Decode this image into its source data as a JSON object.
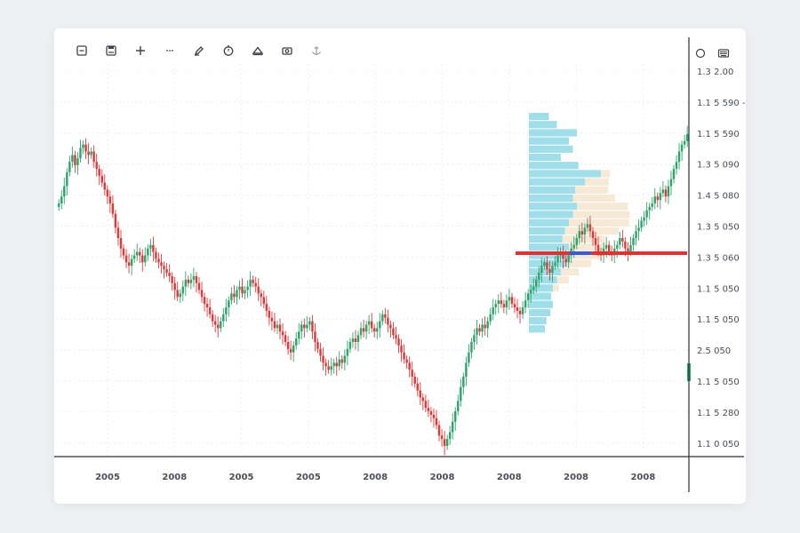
{
  "toolbar": {
    "icons": [
      "minus-box-icon",
      "save-icon",
      "crosshair-icon",
      "dots-icon",
      "pen-icon",
      "clock-icon",
      "triangle-icon",
      "camera-icon",
      "anchor-icon"
    ]
  },
  "corner": {
    "icons": [
      "circle-icon",
      "keyboard-icon"
    ]
  },
  "colors": {
    "up": "#2da56a",
    "down": "#d93a3a",
    "profile_blue": "#8fd8e6",
    "profile_cream": "#f5e6d0",
    "poc_line": "#e03232",
    "poc_mark": "#3b5bd6",
    "grid": "#eceef1"
  },
  "chart_data": {
    "type": "candlestick",
    "x_ticks": [
      "2005",
      "2008",
      "2005",
      "2005",
      "2008",
      "2008",
      "2008",
      "2008",
      "2008"
    ],
    "y_ticks": [
      "1.3 2.00",
      "1.1 5 590 -",
      "1.1 5 590",
      "1.3 5 090",
      "1.4 5 080",
      "1.3 5 050",
      "1.3 5 060",
      "1.1 5 050",
      "1.1 5 050",
      "2.5 050",
      "1.1 5 050",
      "1.1 5 280",
      "1.1 0 050"
    ],
    "close_series": [
      70,
      72,
      75,
      79,
      82,
      84,
      81,
      83,
      86,
      87,
      85,
      84,
      85,
      82,
      80,
      78,
      76,
      74,
      72,
      70,
      67,
      63,
      60,
      57,
      55,
      53,
      52,
      54,
      55,
      56,
      55,
      53,
      55,
      57,
      58,
      56,
      54,
      53,
      52,
      51,
      50,
      49,
      47,
      45,
      43,
      44,
      46,
      48,
      47,
      48,
      49,
      47,
      45,
      43,
      41,
      40,
      38,
      36,
      35,
      34,
      36,
      38,
      40,
      42,
      44,
      43,
      45,
      46,
      44,
      45,
      46,
      48,
      47,
      46,
      44,
      43,
      41,
      39,
      37,
      36,
      34,
      35,
      33,
      32,
      30,
      28,
      27,
      29,
      31,
      33,
      35,
      34,
      35,
      36,
      33,
      30,
      28,
      26,
      24,
      23,
      22,
      23,
      24,
      23,
      25,
      24,
      26,
      28,
      30,
      31,
      30,
      32,
      34,
      33,
      35,
      36,
      34,
      33,
      34,
      36,
      38,
      37,
      35,
      34,
      32,
      31,
      29,
      27,
      25,
      24,
      22,
      20,
      18,
      16,
      14,
      13,
      11,
      10,
      9,
      8,
      6,
      3,
      2,
      0,
      2,
      4,
      7,
      10,
      13,
      17,
      20,
      24,
      27,
      30,
      32,
      34,
      33,
      35,
      34,
      36,
      38,
      40,
      41,
      42,
      41,
      40,
      42,
      43,
      41,
      40,
      39,
      38,
      40,
      42,
      44,
      45,
      46,
      48,
      50,
      52,
      53,
      51,
      50,
      52,
      53,
      55,
      56,
      54,
      53,
      55,
      57,
      58,
      60,
      62,
      61,
      63,
      64,
      62,
      60,
      58,
      56,
      55,
      57,
      58,
      56,
      55,
      57,
      58,
      60,
      59,
      57,
      56,
      58,
      60,
      62,
      63,
      65,
      66,
      68,
      69,
      70,
      72,
      71,
      73,
      74,
      72,
      75,
      77,
      80,
      82,
      85,
      87,
      88,
      90
    ],
    "profile_blue": [
      0.25,
      0.35,
      0.6,
      0.5,
      0.55,
      0.4,
      0.62,
      0.9,
      0.7,
      0.58,
      0.55,
      0.6,
      0.55,
      0.5,
      0.45,
      0.42,
      0.5,
      0.52,
      0.48,
      0.4,
      0.35,
      0.3,
      0.28,
      0.3,
      0.27,
      0.22,
      0.2
    ],
    "profile_cream": [
      0,
      0,
      0,
      0,
      0,
      0,
      0,
      0.15,
      0.4,
      0.55,
      0.7,
      0.85,
      0.95,
      1.0,
      0.9,
      0.7,
      0.6,
      0.5,
      0.4,
      0.3,
      0.2,
      0.1,
      0,
      0,
      0,
      0,
      0
    ]
  }
}
